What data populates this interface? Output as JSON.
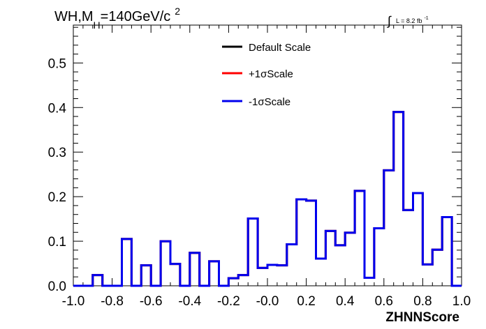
{
  "chart_data": {
    "type": "line",
    "title": {
      "prefix": "WH,M",
      "subscript": "H",
      "main": "=140GeV/c",
      "superscript": "2"
    },
    "luminosity": {
      "integral": "∫",
      "text": "L = 8.2 fb",
      "superscript": "-1"
    },
    "xlabel": "ZHNNScore",
    "ylabel": "",
    "xlim": [
      -1.0,
      1.0
    ],
    "ylim": [
      0.0,
      0.585
    ],
    "x_ticks": [
      "-1.0",
      "-0.8",
      "-0.6",
      "-0.4",
      "-0.2",
      "-0.0",
      "0.2",
      "0.4",
      "0.6",
      "0.8",
      "1.0"
    ],
    "x_tick_values": [
      -1.0,
      -0.8,
      -0.6,
      -0.4,
      -0.2,
      0.0,
      0.2,
      0.4,
      0.6,
      0.8,
      1.0
    ],
    "y_ticks": [
      "0.0",
      "0.1",
      "0.2",
      "0.3",
      "0.4",
      "0.5"
    ],
    "y_tick_values": [
      0.0,
      0.1,
      0.2,
      0.3,
      0.4,
      0.5
    ],
    "bin_edges": [
      -1.0,
      -0.95,
      -0.9,
      -0.85,
      -0.8,
      -0.75,
      -0.7,
      -0.65,
      -0.6,
      -0.55,
      -0.5,
      -0.45,
      -0.4,
      -0.35,
      -0.3,
      -0.25,
      -0.2,
      -0.15,
      -0.1,
      -0.05,
      0.0,
      0.05,
      0.1,
      0.15,
      0.2,
      0.25,
      0.3,
      0.35,
      0.4,
      0.45,
      0.5,
      0.55,
      0.6,
      0.65,
      0.7,
      0.75,
      0.8,
      0.85,
      0.9,
      0.95,
      1.0
    ],
    "legend": {
      "placement": "top-right"
    },
    "series": [
      {
        "name": "Default Scale",
        "color": "#000000",
        "values": [
          0.0,
          0.0,
          0.024,
          0.0,
          0.0,
          0.105,
          0.0,
          0.046,
          0.0,
          0.1,
          0.049,
          0.0,
          0.074,
          0.0,
          0.055,
          0.0,
          0.017,
          0.024,
          0.151,
          0.04,
          0.047,
          0.046,
          0.093,
          0.194,
          0.191,
          0.061,
          0.123,
          0.091,
          0.119,
          0.213,
          0.018,
          0.129,
          0.259,
          0.39,
          0.17,
          0.208,
          0.048,
          0.081,
          0.154,
          0.0
        ]
      },
      {
        "name": "+1σScale",
        "color": "#ff0000",
        "values": [
          0.0,
          0.0,
          0.024,
          0.0,
          0.0,
          0.105,
          0.0,
          0.046,
          0.0,
          0.1,
          0.049,
          0.0,
          0.074,
          0.0,
          0.055,
          0.0,
          0.017,
          0.024,
          0.151,
          0.04,
          0.047,
          0.046,
          0.093,
          0.194,
          0.191,
          0.061,
          0.123,
          0.091,
          0.119,
          0.213,
          0.018,
          0.129,
          0.259,
          0.39,
          0.17,
          0.208,
          0.048,
          0.081,
          0.154,
          0.0
        ]
      },
      {
        "name": "-1σScale",
        "color": "#0000ee",
        "values": [
          0.0,
          0.0,
          0.024,
          0.0,
          0.0,
          0.105,
          0.0,
          0.046,
          0.0,
          0.1,
          0.049,
          0.0,
          0.074,
          0.0,
          0.055,
          0.0,
          0.017,
          0.024,
          0.151,
          0.04,
          0.047,
          0.046,
          0.093,
          0.194,
          0.191,
          0.061,
          0.123,
          0.091,
          0.119,
          0.213,
          0.018,
          0.129,
          0.259,
          0.39,
          0.17,
          0.208,
          0.048,
          0.081,
          0.154,
          0.0
        ]
      }
    ]
  }
}
